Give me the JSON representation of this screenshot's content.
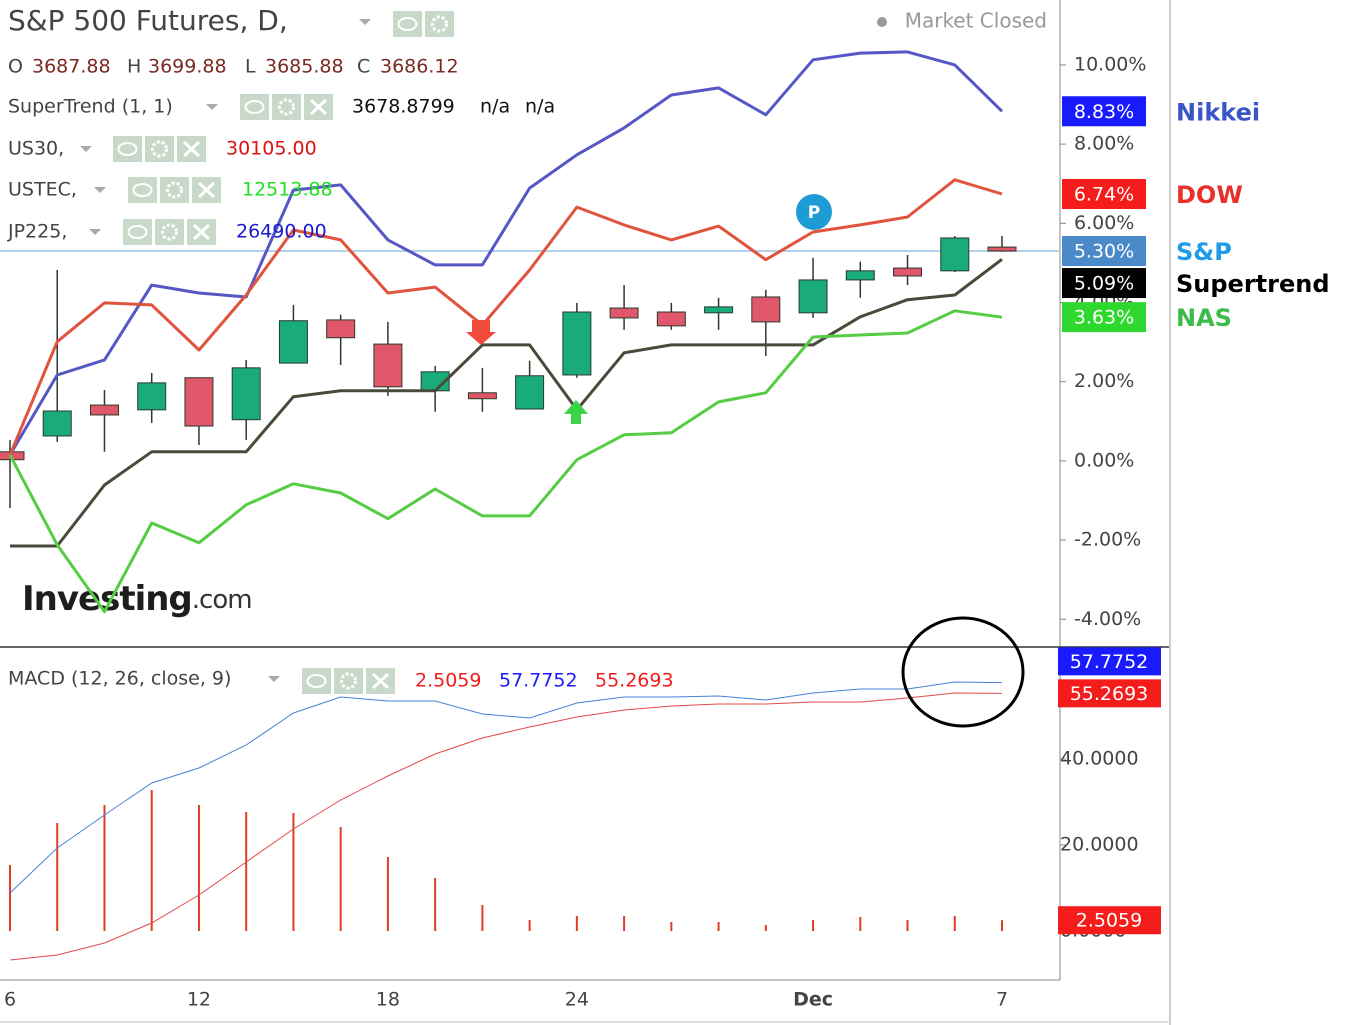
{
  "chart_data": [
    {
      "type": "candlestick",
      "title": "S&P 500 Futures, D,",
      "status": "Market Closed",
      "ohlc": [
        {
          "label": "O",
          "value": "3687.88"
        },
        {
          "label": "H",
          "value": "3699.88"
        },
        {
          "label": "L",
          "value": "3685.88"
        },
        {
          "label": "C",
          "value": "3686.12"
        }
      ],
      "indicators": [
        {
          "name": "SuperTrend (1, 1)",
          "values": [
            "3678.8799",
            "n/a",
            "n/a"
          ],
          "color": "#111111"
        },
        {
          "name": "US30,",
          "values": [
            "30105.00"
          ],
          "color": "#e01010"
        },
        {
          "name": "USTEC,",
          "values": [
            "12513.88"
          ],
          "color": "#22e022"
        },
        {
          "name": "JP225,",
          "values": [
            "26490.00"
          ],
          "color": "#1a1ad0"
        }
      ],
      "watermark": [
        "Investing",
        ".com"
      ],
      "marker_label": "P",
      "categories": [
        "6",
        null,
        null,
        null,
        "12",
        null,
        null,
        null,
        "18",
        null,
        null,
        null,
        "24",
        null,
        null,
        null,
        null,
        "Dec",
        null,
        null,
        null,
        "7"
      ],
      "candles": {
        "name": "S&P",
        "color": "#1e9be9",
        "label_color": "#4a8ac9",
        "last_label": "5.30%",
        "up_color": "#1aab7b",
        "down_color": "#e0566b",
        "open": [
          0.23,
          0.63,
          1.41,
          1.29,
          2.1,
          1.04,
          2.47,
          3.56,
          2.95,
          1.77,
          1.72,
          1.31,
          2.17,
          3.86,
          3.76,
          3.74,
          4.14,
          3.74,
          4.57,
          4.87,
          4.8,
          5.4
        ],
        "high": [
          0.53,
          4.82,
          1.79,
          2.22,
          2.1,
          2.55,
          3.94,
          3.69,
          3.51,
          2.4,
          2.35,
          2.53,
          3.99,
          4.44,
          3.99,
          4.12,
          4.32,
          5.13,
          5.03,
          5.2,
          5.68,
          5.68
        ],
        "low": [
          -1.19,
          0.48,
          0.23,
          0.96,
          0.4,
          0.53,
          2.47,
          2.42,
          1.64,
          1.24,
          1.24,
          1.31,
          2.1,
          3.31,
          3.31,
          3.31,
          2.65,
          3.61,
          4.12,
          4.44,
          4.77,
          5.28
        ],
        "close": [
          0.03,
          1.26,
          1.16,
          1.97,
          0.88,
          2.35,
          3.54,
          3.11,
          1.87,
          2.25,
          1.57,
          2.15,
          3.76,
          3.61,
          3.41,
          3.89,
          3.51,
          4.57,
          4.8,
          4.67,
          5.63,
          5.3
        ]
      },
      "series": [
        {
          "name": "Nikkei",
          "color": "#5558c4",
          "label_color": "#1a1aff",
          "last_label": "8.83%",
          "values": [
            0.15,
            2.17,
            2.55,
            4.44,
            4.24,
            4.14,
            6.84,
            6.97,
            5.58,
            4.95,
            4.95,
            6.89,
            7.73,
            8.41,
            9.24,
            9.42,
            8.74,
            10.13,
            10.3,
            10.33,
            10.0,
            8.83
          ]
        },
        {
          "name": "DOW",
          "color": "#e0533c",
          "label_color": "#f51c1c",
          "last_label": "6.74%",
          "values": [
            0.15,
            3.01,
            3.99,
            3.94,
            2.8,
            4.19,
            5.83,
            5.58,
            4.24,
            4.39,
            3.43,
            4.82,
            6.41,
            5.96,
            5.58,
            5.93,
            5.08,
            5.78,
            5.96,
            6.16,
            7.1,
            6.74
          ]
        },
        {
          "name": "Supertrend",
          "color": "#4a4a3a",
          "label_color": "#000000",
          "last_label": "5.09%",
          "values": [
            -2.15,
            -2.15,
            -0.61,
            0.23,
            0.23,
            0.23,
            1.62,
            1.77,
            1.77,
            1.77,
            2.93,
            2.93,
            1.29,
            2.73,
            2.93,
            2.93,
            2.93,
            2.93,
            3.64,
            4.07,
            4.19,
            5.09
          ]
        },
        {
          "name": "NAS",
          "color": "#55cc44",
          "label_color": "#2ed82e",
          "last_label": "3.63%",
          "values": [
            0.15,
            -2.12,
            -3.81,
            -1.57,
            -2.07,
            -1.11,
            -0.58,
            -0.81,
            -1.46,
            -0.71,
            -1.39,
            -1.39,
            0.03,
            0.66,
            0.71,
            1.49,
            1.72,
            3.13,
            3.18,
            3.23,
            3.79,
            3.63
          ]
        }
      ],
      "ylim": [
        -4.65,
        11.64
      ],
      "yticks": [
        {
          "value": 10,
          "label": "10.00%"
        },
        {
          "value": 8,
          "label": "8.00%"
        },
        {
          "value": 6,
          "label": "6.00%"
        },
        {
          "value": 4,
          "label": "4.00%"
        },
        {
          "value": 2,
          "label": "2.00%"
        },
        {
          "value": 0,
          "label": "0.00%"
        },
        {
          "value": -2,
          "label": "-2.00%"
        },
        {
          "value": -4,
          "label": "-4.00%"
        }
      ]
    },
    {
      "type": "macd",
      "title": "MACD (12, 26, close, 9)",
      "series": [
        {
          "kind": "histogram",
          "color": "#e03c2a",
          "label_color": "#f51c1c",
          "last_label": "2.5059",
          "values": [
            15.35,
            25.12,
            29.3,
            32.79,
            29.3,
            27.67,
            27.44,
            24.19,
            17.21,
            12.33,
            6.05,
            2.56,
            3.49,
            3.49,
            2.09,
            2.09,
            1.4,
            2.56,
            3.26,
            2.56,
            3.49,
            2.5059
          ]
        },
        {
          "kind": "line",
          "color": "#4a80d8",
          "label_color": "#1a1aff",
          "last_label": "57.7752",
          "values": [
            8.84,
            19.3,
            26.98,
            34.42,
            37.91,
            43.26,
            50.7,
            54.42,
            53.49,
            53.49,
            50.47,
            49.53,
            53.02,
            54.42,
            54.42,
            54.65,
            53.72,
            55.35,
            56.28,
            56.28,
            57.91,
            57.7752
          ]
        },
        {
          "kind": "line",
          "color": "#e04a4a",
          "label_color": "#f51c1c",
          "last_label": "55.2693",
          "values": [
            -6.74,
            -5.58,
            -2.79,
            1.86,
            8.37,
            16.05,
            23.72,
            30.47,
            36.05,
            41.16,
            44.88,
            47.44,
            49.77,
            51.4,
            52.33,
            52.79,
            52.79,
            53.26,
            53.26,
            54.19,
            55.35,
            55.2693
          ]
        }
      ],
      "ylim": [
        -11.4,
        66.05
      ],
      "yticks": [
        {
          "value": 40,
          "label": "40.0000"
        },
        {
          "value": 20,
          "label": "20.0000"
        },
        {
          "value": 0,
          "label": "0.0000"
        }
      ]
    }
  ]
}
